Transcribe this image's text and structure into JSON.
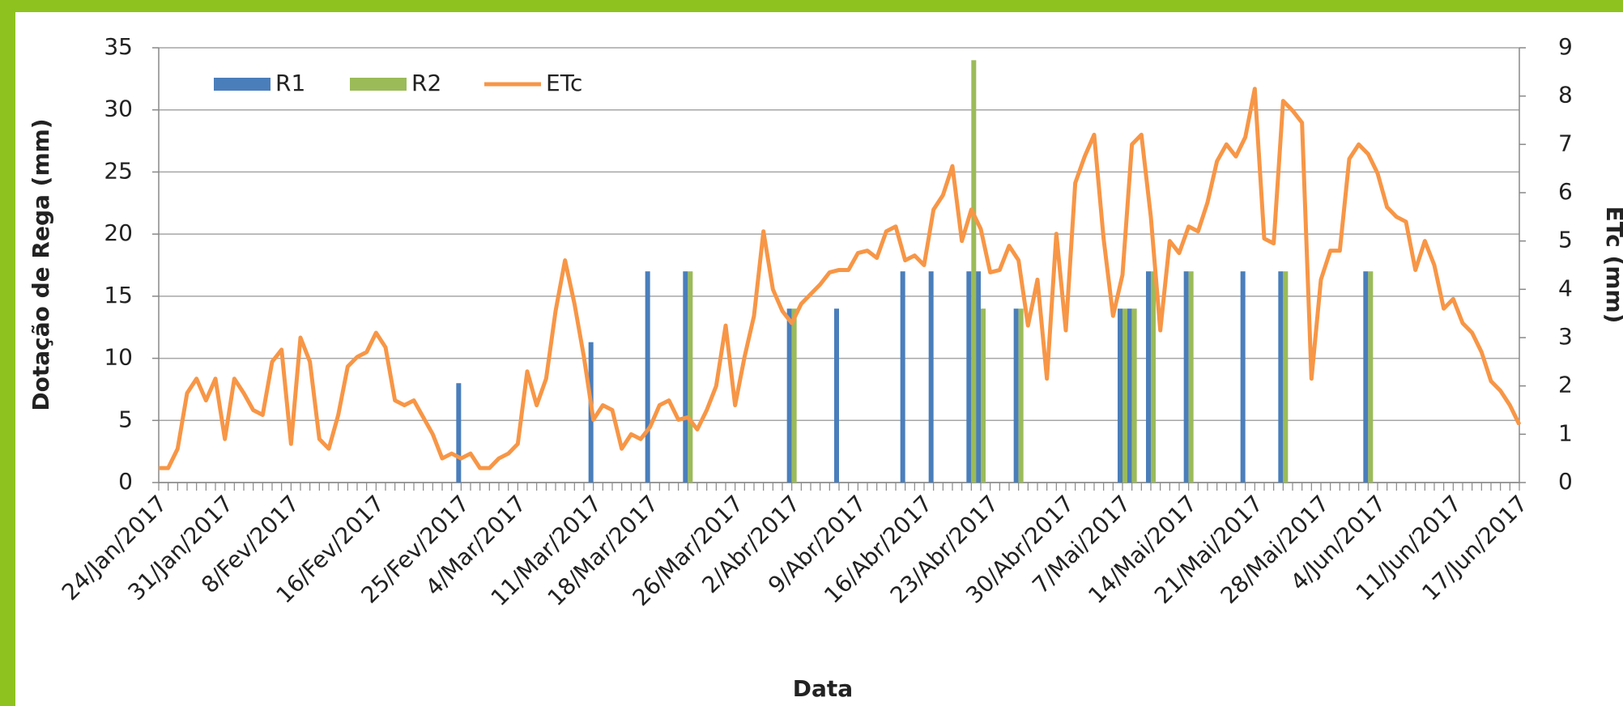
{
  "chart_data": {
    "type": "bar",
    "xlabel": "Data",
    "ylabel": "Dotação de Rega (mm)",
    "y2label": "ETc (mm)",
    "categories": [
      "24/Jan/2017",
      null,
      null,
      null,
      null,
      null,
      null,
      "31/Jan/2017",
      null,
      null,
      null,
      null,
      null,
      null,
      "8/Fev/2017",
      null,
      null,
      null,
      null,
      null,
      null,
      null,
      null,
      "16/Fev/2017",
      null,
      null,
      null,
      null,
      null,
      null,
      null,
      null,
      "25/Fev/2017",
      null,
      null,
      null,
      null,
      null,
      "4/Mar/2017",
      null,
      null,
      null,
      null,
      null,
      null,
      null,
      "11/Mar/2017",
      null,
      null,
      null,
      null,
      null,
      "18/Mar/2017",
      null,
      null,
      null,
      null,
      null,
      null,
      null,
      null,
      "26/Mar/2017",
      null,
      null,
      null,
      null,
      null,
      "2/Abr/2017",
      null,
      null,
      null,
      null,
      null,
      null,
      "9/Abr/2017",
      null,
      null,
      null,
      null,
      null,
      null,
      "16/Abr/2017",
      null,
      null,
      null,
      null,
      null,
      null,
      "23/Abr/2017",
      null,
      null,
      null,
      null,
      null,
      null,
      null,
      "30/Abr/2017",
      null,
      null,
      null,
      null,
      null,
      "7/Mai/2017",
      null,
      null,
      null,
      null,
      null,
      null,
      "14/Mai/2017",
      null,
      null,
      null,
      null,
      null,
      null,
      "21/Mai/2017",
      null,
      null,
      null,
      null,
      null,
      null,
      "28/Mai/2017",
      null,
      null,
      null,
      null,
      null,
      "4/Jun/2017",
      null,
      null,
      null,
      null,
      null,
      null,
      null,
      "11/Jun/2017",
      null,
      null,
      null,
      null,
      null,
      null,
      "17/Jun/2017"
    ],
    "series": [
      {
        "name": "R1",
        "color": "#4a7ebb",
        "type": "bar",
        "values": [
          null,
          null,
          null,
          null,
          null,
          null,
          null,
          null,
          null,
          null,
          null,
          null,
          null,
          null,
          null,
          null,
          null,
          null,
          null,
          null,
          null,
          null,
          null,
          null,
          null,
          null,
          null,
          null,
          null,
          null,
          null,
          null,
          8,
          null,
          null,
          null,
          null,
          null,
          null,
          null,
          null,
          null,
          null,
          null,
          null,
          null,
          11.3,
          null,
          null,
          null,
          null,
          null,
          17,
          null,
          null,
          null,
          17,
          null,
          null,
          null,
          null,
          null,
          null,
          null,
          null,
          null,
          null,
          14,
          null,
          null,
          null,
          null,
          14,
          null,
          null,
          null,
          null,
          null,
          null,
          17,
          null,
          null,
          17,
          null,
          null,
          null,
          17,
          17,
          null,
          null,
          null,
          14,
          null,
          null,
          null,
          null,
          null,
          null,
          null,
          null,
          null,
          null,
          14,
          14,
          null,
          17,
          null,
          null,
          null,
          17,
          null,
          null,
          null,
          null,
          null,
          17,
          null,
          null,
          null,
          17,
          null,
          null,
          null,
          null,
          null,
          null,
          null,
          null,
          17,
          null,
          null,
          null,
          null,
          null,
          null,
          null,
          null,
          null,
          null,
          null,
          null,
          null,
          null,
          null,
          null
        ]
      },
      {
        "name": "R2",
        "color": "#9bbb59",
        "type": "bar",
        "values": [
          null,
          null,
          null,
          null,
          null,
          null,
          null,
          null,
          null,
          null,
          null,
          null,
          null,
          null,
          null,
          null,
          null,
          null,
          null,
          null,
          null,
          null,
          null,
          null,
          null,
          null,
          null,
          null,
          null,
          null,
          null,
          null,
          null,
          null,
          null,
          null,
          null,
          null,
          null,
          null,
          null,
          null,
          null,
          null,
          null,
          null,
          null,
          null,
          null,
          null,
          null,
          null,
          null,
          null,
          null,
          null,
          17,
          null,
          null,
          null,
          null,
          null,
          null,
          null,
          null,
          null,
          null,
          14,
          null,
          null,
          null,
          null,
          null,
          null,
          null,
          null,
          null,
          null,
          null,
          null,
          null,
          null,
          null,
          null,
          null,
          null,
          34,
          14,
          null,
          null,
          null,
          14,
          null,
          null,
          null,
          null,
          null,
          null,
          null,
          null,
          null,
          null,
          14,
          14,
          null,
          17,
          null,
          null,
          null,
          17,
          null,
          null,
          null,
          null,
          null,
          null,
          null,
          null,
          null,
          17,
          null,
          null,
          null,
          null,
          null,
          null,
          null,
          null,
          17,
          null,
          null,
          null,
          null,
          null,
          null,
          null,
          null,
          null,
          null,
          null,
          null,
          null,
          null,
          null,
          null
        ]
      },
      {
        "name": "ETc",
        "color": "#f79646",
        "type": "line",
        "axis": "y2",
        "values": [
          0.3,
          0.3,
          0.7,
          1.85,
          2.15,
          1.7,
          2.15,
          0.9,
          2.15,
          1.85,
          1.5,
          1.4,
          2.5,
          2.75,
          0.8,
          3.0,
          2.5,
          0.9,
          0.7,
          1.4,
          2.4,
          2.6,
          2.7,
          3.1,
          2.8,
          1.7,
          1.6,
          1.7,
          1.35,
          1.0,
          0.5,
          0.6,
          0.5,
          0.6,
          0.3,
          0.3,
          0.5,
          0.6,
          0.8,
          2.3,
          1.6,
          2.15,
          3.55,
          4.6,
          3.7,
          2.6,
          1.3,
          1.6,
          1.5,
          0.7,
          1.0,
          0.9,
          1.15,
          1.6,
          1.7,
          1.3,
          1.35,
          1.1,
          1.5,
          2.0,
          3.25,
          1.6,
          2.6,
          3.45,
          5.2,
          4.0,
          3.55,
          3.3,
          3.7,
          3.9,
          4.1,
          4.35,
          4.4,
          4.4,
          4.75,
          4.8,
          4.65,
          5.2,
          5.3,
          4.6,
          4.7,
          4.5,
          5.65,
          5.95,
          6.55,
          5.0,
          5.65,
          5.25,
          4.35,
          4.4,
          4.9,
          4.6,
          3.25,
          4.2,
          2.15,
          5.15,
          3.15,
          6.2,
          6.75,
          7.2,
          5.05,
          3.45,
          4.3,
          7.0,
          7.2,
          5.5,
          3.15,
          5.0,
          4.75,
          5.3,
          5.2,
          5.8,
          6.65,
          7.0,
          6.75,
          7.15,
          8.15,
          5.05,
          4.95,
          7.9,
          7.7,
          7.45,
          2.15,
          4.2,
          4.8,
          4.8,
          6.7,
          7.0,
          6.8,
          6.4,
          5.7,
          5.5,
          5.4,
          4.4,
          5.0,
          4.5,
          3.6,
          3.8,
          3.3,
          3.1,
          2.7,
          2.1,
          1.9,
          1.6,
          1.2
        ]
      }
    ],
    "ylim": [
      0,
      35
    ],
    "yticks": [
      0,
      5,
      10,
      15,
      20,
      25,
      30,
      35
    ],
    "y2lim": [
      0,
      9
    ],
    "y2ticks": [
      0,
      1,
      2,
      3,
      4,
      5,
      6,
      7,
      8,
      9
    ],
    "grid": true,
    "legend": "upper-left"
  }
}
